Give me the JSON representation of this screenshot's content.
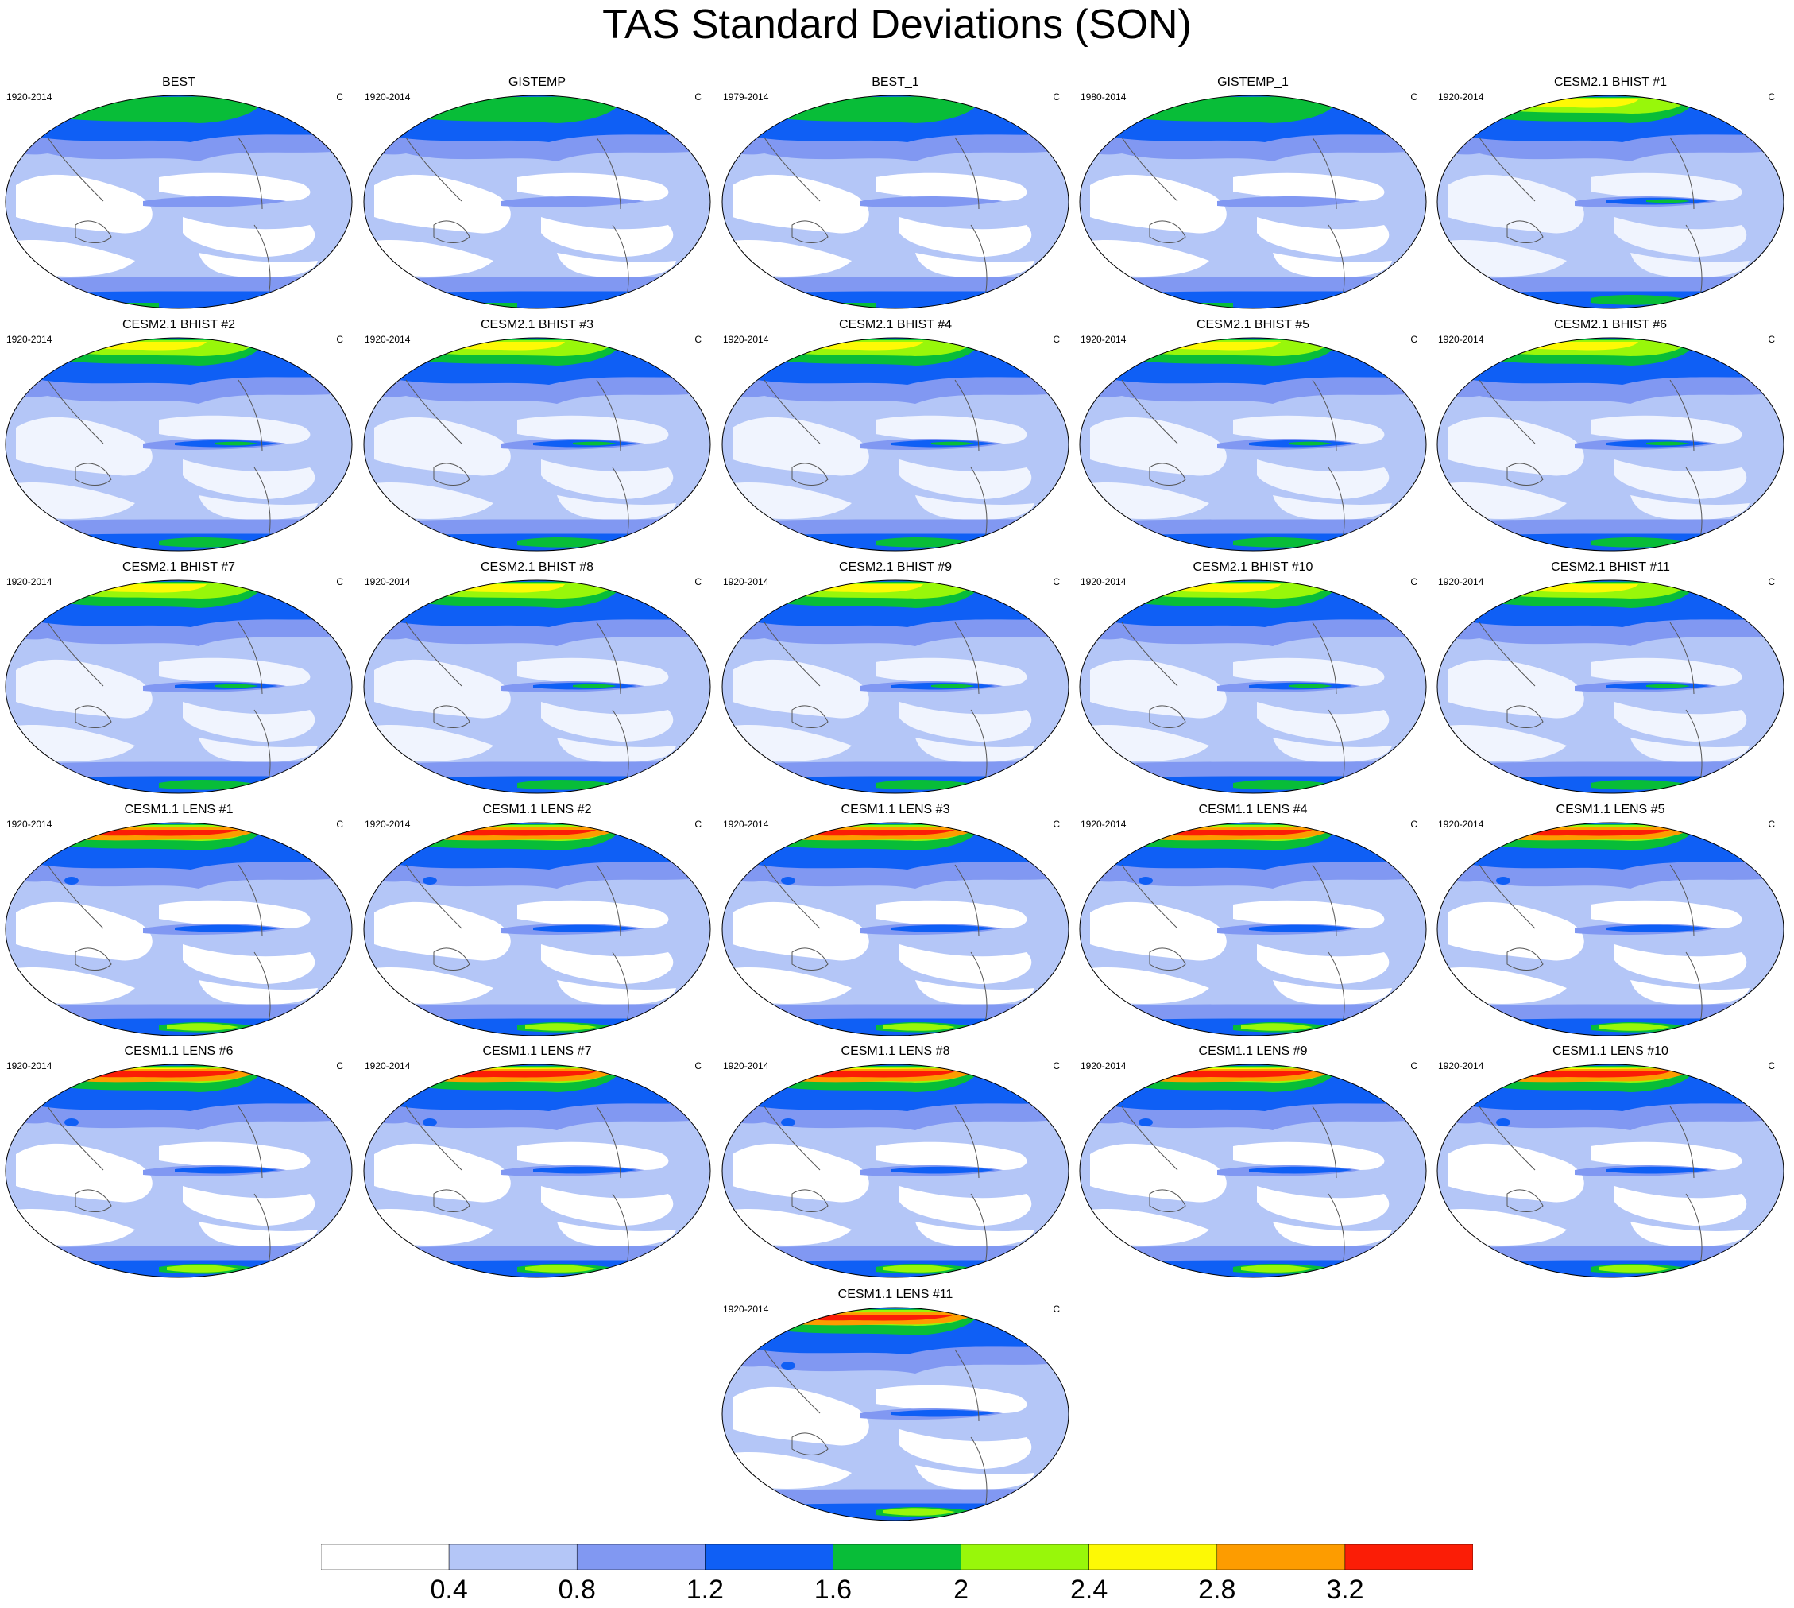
{
  "title": "TAS Standard Deviations (SON)",
  "units": "C",
  "colorbar": {
    "colors": [
      "#ffffff",
      "#b4c6f7",
      "#8198f2",
      "#0f5ff5",
      "#08bd38",
      "#98f70a",
      "#fdf905",
      "#fd9c00",
      "#fb1d06"
    ],
    "labels": [
      "0.4",
      "0.8",
      "1.2",
      "1.6",
      "2",
      "2.4",
      "2.8",
      "3.2"
    ]
  },
  "panels": [
    {
      "title": "BEST",
      "period": "1920-2014",
      "units": "C",
      "type": "obs"
    },
    {
      "title": "GISTEMP",
      "period": "1920-2014",
      "units": "C",
      "type": "obs"
    },
    {
      "title": "BEST_1",
      "period": "1979-2014",
      "units": "C",
      "type": "obs"
    },
    {
      "title": "GISTEMP_1",
      "period": "1980-2014",
      "units": "C",
      "type": "obs"
    },
    {
      "title": "CESM2.1 BHIST #1",
      "period": "1920-2014",
      "units": "C",
      "type": "cesm2"
    },
    {
      "title": "CESM2.1 BHIST #2",
      "period": "1920-2014",
      "units": "C",
      "type": "cesm2"
    },
    {
      "title": "CESM2.1 BHIST #3",
      "period": "1920-2014",
      "units": "C",
      "type": "cesm2"
    },
    {
      "title": "CESM2.1 BHIST #4",
      "period": "1920-2014",
      "units": "C",
      "type": "cesm2"
    },
    {
      "title": "CESM2.1 BHIST #5",
      "period": "1920-2014",
      "units": "C",
      "type": "cesm2"
    },
    {
      "title": "CESM2.1 BHIST #6",
      "period": "1920-2014",
      "units": "C",
      "type": "cesm2"
    },
    {
      "title": "CESM2.1 BHIST #7",
      "period": "1920-2014",
      "units": "C",
      "type": "cesm2"
    },
    {
      "title": "CESM2.1 BHIST #8",
      "period": "1920-2014",
      "units": "C",
      "type": "cesm2"
    },
    {
      "title": "CESM2.1 BHIST #9",
      "period": "1920-2014",
      "units": "C",
      "type": "cesm2"
    },
    {
      "title": "CESM2.1 BHIST #10",
      "period": "1920-2014",
      "units": "C",
      "type": "cesm2"
    },
    {
      "title": "CESM2.1 BHIST #11",
      "period": "1920-2014",
      "units": "C",
      "type": "cesm2"
    },
    {
      "title": "CESM1.1 LENS #1",
      "period": "1920-2014",
      "units": "C",
      "type": "cesm1"
    },
    {
      "title": "CESM1.1 LENS #2",
      "period": "1920-2014",
      "units": "C",
      "type": "cesm1"
    },
    {
      "title": "CESM1.1 LENS #3",
      "period": "1920-2014",
      "units": "C",
      "type": "cesm1"
    },
    {
      "title": "CESM1.1 LENS #4",
      "period": "1920-2014",
      "units": "C",
      "type": "cesm1"
    },
    {
      "title": "CESM1.1 LENS #5",
      "period": "1920-2014",
      "units": "C",
      "type": "cesm1"
    },
    {
      "title": "CESM1.1 LENS #6",
      "period": "1920-2014",
      "units": "C",
      "type": "cesm1"
    },
    {
      "title": "CESM1.1 LENS #7",
      "period": "1920-2014",
      "units": "C",
      "type": "cesm1"
    },
    {
      "title": "CESM1.1 LENS #8",
      "period": "1920-2014",
      "units": "C",
      "type": "cesm1"
    },
    {
      "title": "CESM1.1 LENS #9",
      "period": "1920-2014",
      "units": "C",
      "type": "cesm1"
    },
    {
      "title": "CESM1.1 LENS #10",
      "period": "1920-2014",
      "units": "C",
      "type": "cesm1"
    },
    {
      "title": "CESM1.1 LENS #11",
      "period": "1920-2014",
      "units": "C",
      "type": "cesm1"
    }
  ]
}
